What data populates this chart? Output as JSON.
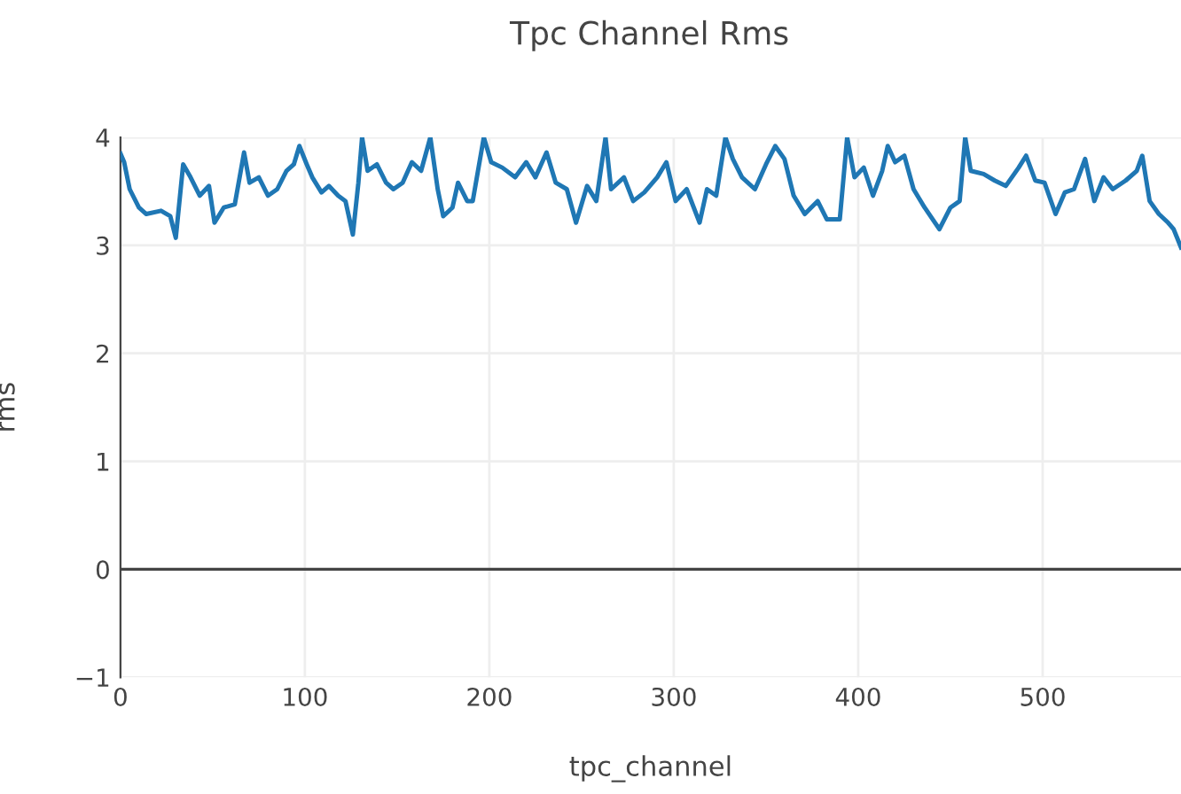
{
  "chart_data": {
    "type": "line",
    "title": "Tpc Channel Rms",
    "xlabel": "tpc_channel",
    "ylabel": "rms",
    "x": [
      0,
      2,
      5,
      10,
      14,
      22,
      27,
      30,
      34,
      38,
      43,
      48,
      51,
      56,
      62,
      67,
      70,
      75,
      80,
      85,
      90,
      94,
      97,
      101,
      104,
      109,
      113,
      118,
      122,
      126,
      129,
      131,
      134,
      139,
      144,
      148,
      153,
      158,
      163,
      168,
      172,
      175,
      180,
      183,
      188,
      191,
      197,
      201,
      207,
      214,
      220,
      225,
      231,
      236,
      242,
      247,
      253,
      258,
      263,
      266,
      273,
      278,
      284,
      291,
      296,
      301,
      307,
      314,
      318,
      323,
      328,
      332,
      337,
      344,
      350,
      355,
      360,
      365,
      371,
      378,
      383,
      390,
      394,
      398,
      403,
      408,
      413,
      416,
      420,
      425,
      430,
      436,
      444,
      450,
      455,
      458,
      461,
      468,
      474,
      480,
      487,
      491,
      496,
      501,
      507,
      512,
      517,
      523,
      528,
      533,
      538,
      545,
      551,
      554,
      558,
      563,
      568,
      571,
      575
    ],
    "series": [
      {
        "color": "#1f77b4",
        "values": [
          3.85,
          3.77,
          3.52,
          3.35,
          3.29,
          3.32,
          3.27,
          3.07,
          3.75,
          3.63,
          3.46,
          3.55,
          3.21,
          3.35,
          3.38,
          3.86,
          3.58,
          3.63,
          3.46,
          3.52,
          3.69,
          3.75,
          3.92,
          3.75,
          3.63,
          3.49,
          3.55,
          3.46,
          3.41,
          3.1,
          3.58,
          4.0,
          3.69,
          3.75,
          3.58,
          3.52,
          3.58,
          3.77,
          3.69,
          4.0,
          3.52,
          3.27,
          3.35,
          3.58,
          3.41,
          3.41,
          4.0,
          3.77,
          3.72,
          3.63,
          3.77,
          3.63,
          3.86,
          3.58,
          3.52,
          3.21,
          3.55,
          3.41,
          4.0,
          3.52,
          3.63,
          3.41,
          3.49,
          3.63,
          3.77,
          3.41,
          3.52,
          3.21,
          3.52,
          3.46,
          4.0,
          3.8,
          3.63,
          3.52,
          3.75,
          3.92,
          3.8,
          3.46,
          3.29,
          3.41,
          3.24,
          3.24,
          4.0,
          3.63,
          3.72,
          3.46,
          3.69,
          3.92,
          3.77,
          3.83,
          3.52,
          3.35,
          3.15,
          3.35,
          3.41,
          4.0,
          3.69,
          3.66,
          3.6,
          3.55,
          3.72,
          3.83,
          3.6,
          3.58,
          3.29,
          3.49,
          3.52,
          3.8,
          3.41,
          3.63,
          3.52,
          3.6,
          3.69,
          3.83,
          3.41,
          3.29,
          3.21,
          3.15,
          2.98
        ]
      }
    ],
    "xlim": [
      0,
      575
    ],
    "xticks": [
      0,
      100,
      200,
      300,
      400,
      500
    ],
    "ylim": [
      -1,
      4
    ],
    "yticks": [
      {
        "value": -1,
        "label": "−1"
      },
      0,
      1,
      2,
      3,
      4
    ],
    "ref_lines": [
      {
        "axis": "y",
        "value": 0,
        "color": "#444444"
      }
    ],
    "grid": true,
    "marker": "none",
    "line_style": "solid"
  }
}
